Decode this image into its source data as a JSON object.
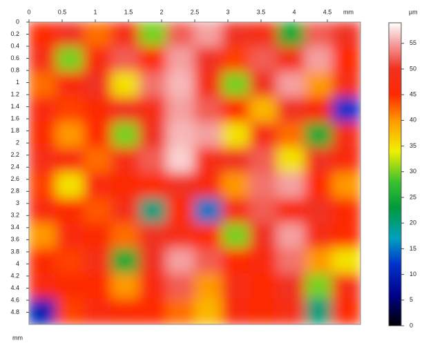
{
  "chart_data": {
    "type": "heatmap",
    "x_unit": "mm",
    "y_unit": "mm",
    "colorbar_unit": "µm",
    "xlim": [
      0,
      5
    ],
    "xticks": [
      0,
      0.5,
      1,
      1.5,
      2,
      2.5,
      3,
      3.5,
      4,
      4.5
    ],
    "ylim": [
      0,
      5
    ],
    "yticks": [
      0,
      0.2,
      0.4,
      0.6,
      0.8,
      1,
      1.2,
      1.4,
      1.6,
      1.8,
      2,
      2.2,
      2.4,
      2.6,
      2.8,
      3,
      3.2,
      3.4,
      3.6,
      3.8,
      4,
      4.2,
      4.4,
      4.6,
      4.8
    ],
    "zlim": [
      0,
      59
    ],
    "zticks": [
      0,
      5,
      10,
      15,
      20,
      25,
      30,
      35,
      40,
      45,
      50,
      55
    ],
    "colorscale": [
      [
        0,
        "#000000"
      ],
      [
        6,
        "#00008b"
      ],
      [
        12,
        "#0033cc"
      ],
      [
        17,
        "#00a0c0"
      ],
      [
        23,
        "#009a3a"
      ],
      [
        28,
        "#3cc030"
      ],
      [
        34,
        "#f0f000"
      ],
      [
        40,
        "#ff9900"
      ],
      [
        45,
        "#ff2a00"
      ],
      [
        50,
        "#f03020"
      ],
      [
        55,
        "#f4a0a0"
      ],
      [
        59,
        "#ffffff"
      ]
    ],
    "z": [
      [
        45,
        50,
        42,
        48,
        30,
        52,
        55,
        50,
        48,
        25,
        52,
        50
      ],
      [
        48,
        30,
        47,
        52,
        45,
        55,
        50,
        44,
        52,
        48,
        55,
        45
      ],
      [
        42,
        47,
        50,
        35,
        53,
        56,
        48,
        30,
        50,
        55,
        40,
        48
      ],
      [
        47,
        44,
        46,
        50,
        48,
        55,
        52,
        45,
        38,
        50,
        47,
        12
      ],
      [
        46,
        40,
        45,
        30,
        50,
        56,
        55,
        35,
        48,
        42,
        25,
        48
      ],
      [
        48,
        47,
        42,
        48,
        52,
        57,
        48,
        50,
        52,
        35,
        50,
        47
      ],
      [
        44,
        35,
        47,
        46,
        45,
        50,
        47,
        40,
        53,
        55,
        45,
        40
      ],
      [
        47,
        46,
        43,
        48,
        20,
        45,
        15,
        48,
        52,
        47,
        50,
        46
      ],
      [
        40,
        47,
        46,
        42,
        50,
        48,
        45,
        30,
        50,
        55,
        48,
        45
      ],
      [
        46,
        44,
        48,
        25,
        50,
        55,
        52,
        45,
        47,
        53,
        40,
        35
      ],
      [
        47,
        46,
        45,
        40,
        47,
        52,
        40,
        48,
        45,
        50,
        30,
        48
      ],
      [
        10,
        44,
        47,
        46,
        45,
        42,
        38,
        47,
        46,
        48,
        20,
        45
      ]
    ]
  }
}
